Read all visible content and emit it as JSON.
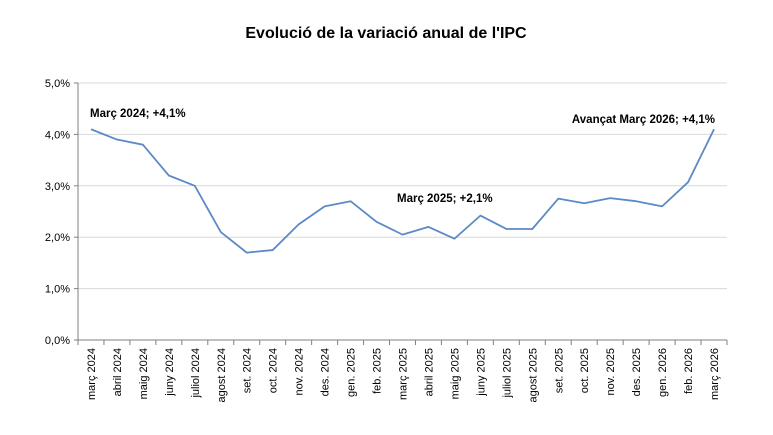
{
  "chart_data": {
    "type": "line",
    "title": "Evolució de la variació anual de l'IPC",
    "xlabel": "",
    "ylabel": "",
    "ylim": [
      0,
      5
    ],
    "y_ticks": [
      0,
      1,
      2,
      3,
      4,
      5
    ],
    "y_tick_labels": [
      "0,0%",
      "1,0%",
      "2,0%",
      "3,0%",
      "4,0%",
      "5,0%"
    ],
    "grid": true,
    "line_color": "#5b8ac6",
    "grid_color": "#d9d9d9",
    "categories": [
      "març 2024",
      "abril 2024",
      "maig 2024",
      "juny 2024",
      "juliol 2024",
      "agost 2024",
      "set. 2024",
      "oct. 2024",
      "nov. 2024",
      "des. 2024",
      "gen. 2025",
      "feb. 2025",
      "març 2025",
      "abril 2025",
      "maig 2025",
      "juny 2025",
      "juliol 2025",
      "agost 2025",
      "set. 2025",
      "oct. 2025",
      "nov. 2025",
      "des. 2025",
      "gen. 2026",
      "feb. 2026",
      "març 2026"
    ],
    "values": [
      4.1,
      3.9,
      3.8,
      3.2,
      3.0,
      2.1,
      1.7,
      1.75,
      2.25,
      2.6,
      2.7,
      2.3,
      2.05,
      2.2,
      1.97,
      2.42,
      2.16,
      2.16,
      2.75,
      2.66,
      2.76,
      2.7,
      2.6,
      3.07,
      4.1
    ],
    "annotations": [
      {
        "text": "Març 2024; +4,1%",
        "category_index": 0,
        "value": 4.1
      },
      {
        "text": "Març 2025;  +2,1%",
        "category_index": 12,
        "value": 2.05
      },
      {
        "text": "Avançat Març 2026; +4,1%",
        "category_index": 24,
        "value": 4.1
      }
    ]
  }
}
